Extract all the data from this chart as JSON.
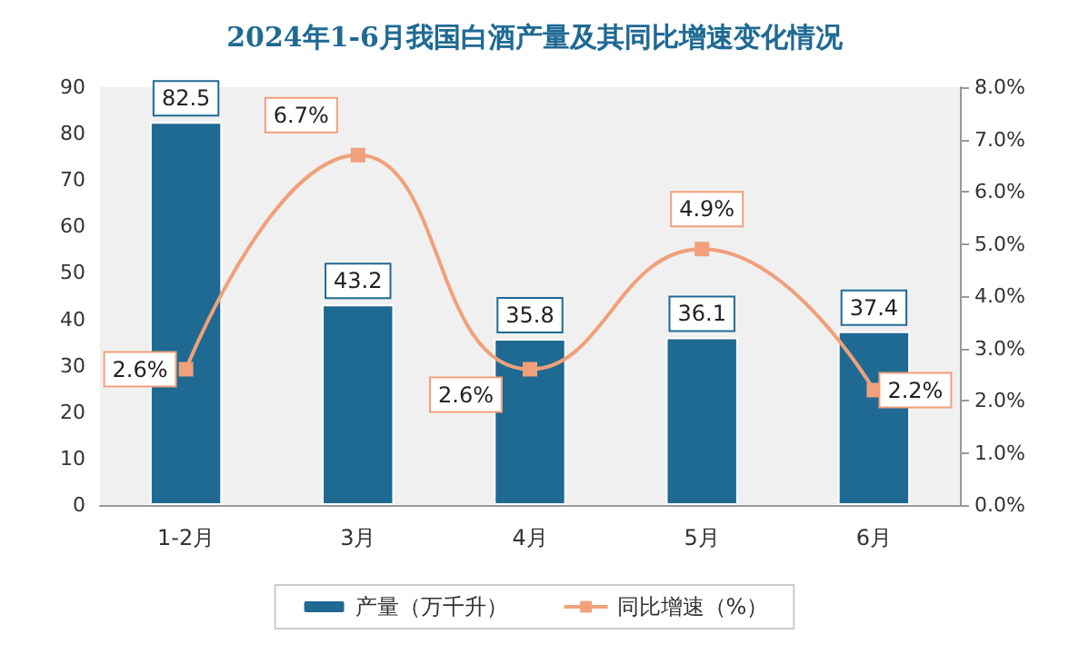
{
  "chart_data": {
    "type": "bar",
    "title": "2024年1-6月我国白酒产量及其同比增速变化情况",
    "categories": [
      "1-2月",
      "3月",
      "4月",
      "5月",
      "6月"
    ],
    "series": [
      {
        "name": "产量（万千升）",
        "color": "#1f6a93",
        "values": [
          82.5,
          43.2,
          35.8,
          36.1,
          37.4
        ],
        "value_labels": [
          "82.5",
          "43.2",
          "35.8",
          "36.1",
          "37.4"
        ]
      },
      {
        "name": "同比增速（%）",
        "type": "line",
        "axis": "y2",
        "color": "#f0a07a",
        "values": [
          2.6,
          6.7,
          2.6,
          4.9,
          2.2
        ],
        "value_labels": [
          "2.6%",
          "6.7%",
          "2.6%",
          "4.9%",
          "2.2%"
        ]
      }
    ],
    "ylim": [
      0,
      90
    ],
    "yticks": [
      0,
      10,
      20,
      30,
      40,
      50,
      60,
      70,
      80,
      90
    ],
    "y2lim": [
      0,
      8
    ],
    "y2ticks": [
      {
        "value": 0,
        "label": "0.0%"
      },
      {
        "value": 1,
        "label": "1.0%"
      },
      {
        "value": 2,
        "label": "2.0%"
      },
      {
        "value": 3,
        "label": "3.0%"
      },
      {
        "value": 4,
        "label": "4.0%"
      },
      {
        "value": 5,
        "label": "5.0%"
      },
      {
        "value": 6,
        "label": "6.0%"
      },
      {
        "value": 7,
        "label": "7.0%"
      },
      {
        "value": 8,
        "label": "8.0%"
      }
    ],
    "legend": "bottom",
    "marker": "square",
    "grid": false
  }
}
